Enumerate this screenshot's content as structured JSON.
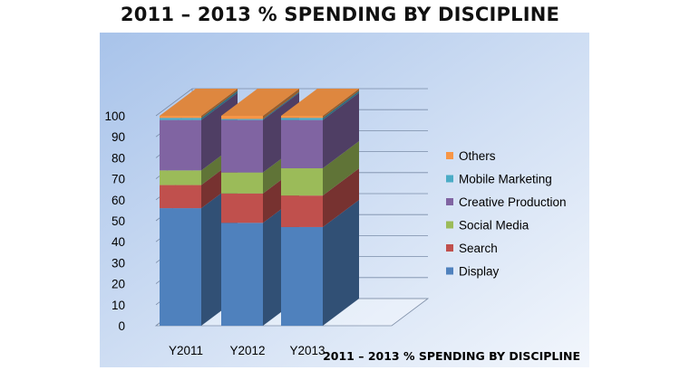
{
  "chart_data": {
    "type": "bar",
    "stacked": true,
    "style": "3d",
    "title": "2011 – 2013 % SPENDING BY DISCIPLINE",
    "footer_title": "2011 – 2013 % SPENDING BY DISCIPLINE",
    "categories": [
      "Y2011",
      "Y2012",
      "Y2013"
    ],
    "ylim": [
      0,
      100
    ],
    "yticks": [
      0,
      10,
      20,
      30,
      40,
      50,
      60,
      70,
      80,
      90,
      100
    ],
    "grid": true,
    "legend_position": "right",
    "series": [
      {
        "name": "Display",
        "color": "#4F81BD",
        "values": [
          56,
          49,
          47
        ]
      },
      {
        "name": "Search",
        "color": "#C0504D",
        "values": [
          11,
          14,
          15
        ]
      },
      {
        "name": "Social Media",
        "color": "#9BBB59",
        "values": [
          7,
          10,
          13
        ]
      },
      {
        "name": "Creative Production",
        "color": "#8064A2",
        "values": [
          24,
          25,
          23
        ]
      },
      {
        "name": "Mobile Marketing",
        "color": "#4BACC6",
        "values": [
          1,
          0.5,
          1
        ]
      },
      {
        "name": "Others",
        "color": "#F79646",
        "values": [
          1,
          1.5,
          1
        ]
      }
    ]
  }
}
